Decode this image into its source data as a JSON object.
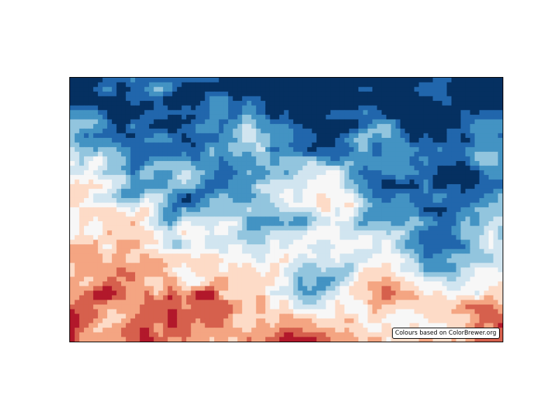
{
  "chart_data": {
    "type": "heatmap",
    "title": "",
    "xlabel": "",
    "ylabel": "",
    "grid": false,
    "ticks": false,
    "colormap": "RdBu (ColorBrewer diverging, 9 classes)",
    "colors": [
      "#67001f",
      "#b2182b",
      "#d6604d",
      "#f4a582",
      "#fddbc7",
      "#f7f7f7",
      "#d1e5f0",
      "#92c5de",
      "#4393c3",
      "#2166ac",
      "#053061"
    ],
    "grid_shape": {
      "rows": 57,
      "cols": 93
    },
    "pattern": "diagonal gradient: dark blue in upper-right, neutral white band along the middle diagonal, dark red in lower-left, with noisy streaky texture",
    "annotation": "Colours based on ColorBrewer.org",
    "annotation_position": "bottom-right"
  }
}
